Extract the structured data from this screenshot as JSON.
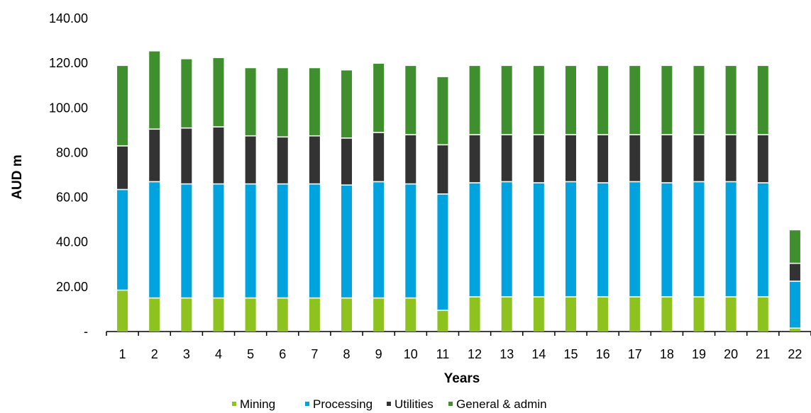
{
  "chart_data": {
    "type": "bar",
    "stacked": true,
    "title": "",
    "xlabel": "Years",
    "ylabel": "AUD m",
    "ylim": [
      0,
      140
    ],
    "yticks": [
      "-",
      "20.00",
      "40.00",
      "60.00",
      "80.00",
      "100.00",
      "120.00",
      "140.00"
    ],
    "grid": false,
    "legend_position": "bottom",
    "categories": [
      "1",
      "2",
      "3",
      "4",
      "5",
      "6",
      "7",
      "8",
      "9",
      "10",
      "11",
      "12",
      "13",
      "14",
      "15",
      "16",
      "17",
      "18",
      "19",
      "20",
      "21",
      "22"
    ],
    "series": [
      {
        "name": "Mining",
        "color": "#8dc21f",
        "values": [
          18.5,
          15.0,
          15.0,
          15.0,
          15.0,
          15.0,
          15.0,
          15.0,
          15.0,
          15.0,
          9.5,
          15.5,
          15.5,
          15.5,
          15.5,
          15.5,
          15.5,
          15.5,
          15.5,
          15.5,
          15.5,
          1.5
        ]
      },
      {
        "name": "Processing",
        "color": "#00a3de",
        "values": [
          45.0,
          52.0,
          51.0,
          51.0,
          51.0,
          51.0,
          51.0,
          50.5,
          52.0,
          51.0,
          52.0,
          51.0,
          51.5,
          51.0,
          51.5,
          51.0,
          51.5,
          51.0,
          51.5,
          51.5,
          51.0,
          21.0
        ]
      },
      {
        "name": "Utilities",
        "color": "#333333",
        "values": [
          19.5,
          23.5,
          25.0,
          25.5,
          21.5,
          21.0,
          21.5,
          21.0,
          22.0,
          22.0,
          22.0,
          21.5,
          21.0,
          21.5,
          21.0,
          21.5,
          21.0,
          21.5,
          21.0,
          21.0,
          21.5,
          8.0
        ]
      },
      {
        "name": "General & admin",
        "color": "#3f8f2f",
        "values": [
          36.0,
          35.0,
          31.0,
          31.0,
          30.5,
          31.0,
          30.5,
          30.5,
          31.0,
          31.0,
          30.5,
          31.0,
          31.0,
          31.0,
          31.0,
          31.0,
          31.0,
          31.0,
          31.0,
          31.0,
          31.0,
          15.0
        ]
      }
    ]
  }
}
